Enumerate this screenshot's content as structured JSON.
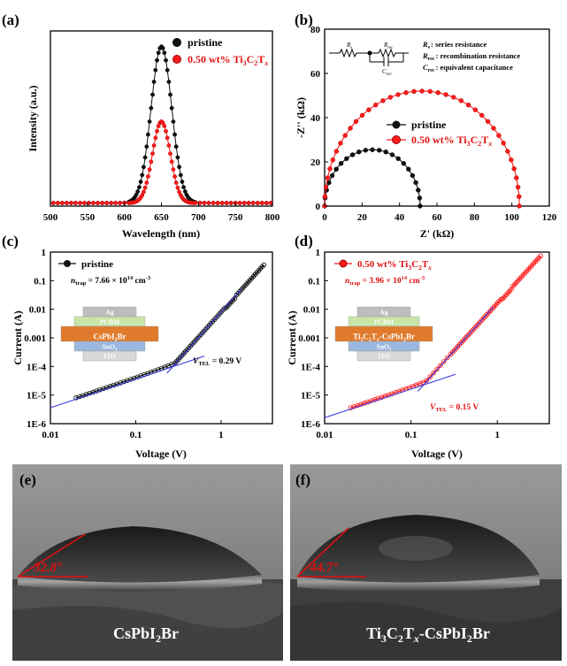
{
  "colors": {
    "black_series": "#111111",
    "red_series": "#ff1a1a",
    "fit_line": "#3a3adf",
    "angle": "#e01010"
  },
  "panels": [
    {
      "id": "a",
      "label": "(a)"
    },
    {
      "id": "b",
      "label": "(b)"
    },
    {
      "id": "c",
      "label": "(c)"
    },
    {
      "id": "d",
      "label": "(d)"
    },
    {
      "id": "e",
      "label": "(e)"
    },
    {
      "id": "f",
      "label": "(f)"
    }
  ],
  "chart_data": [
    {
      "id": "a",
      "type": "line",
      "xlabel": "Wavelength (nm)",
      "ylabel": "Intensity (a.u.)",
      "xlim": [
        500,
        800
      ],
      "ylim": [
        0,
        1.12
      ],
      "y_ticks_shown": false,
      "x_ticks": [
        500,
        550,
        600,
        650,
        700,
        750,
        800
      ],
      "legend": {
        "position": "top-right",
        "entries": [
          "pristine",
          "0.50 wt% Ti3C2Tx"
        ]
      },
      "series": [
        {
          "name": "pristine",
          "color": "black",
          "peak": 650,
          "sigma": 14,
          "amplitude": 1.0,
          "baseline": 0.02
        },
        {
          "name": "0.50 wt% Ti3C2Tx",
          "color": "red",
          "peak": 650,
          "sigma": 12,
          "amplitude": 0.52,
          "baseline": 0.02
        }
      ]
    },
    {
      "id": "b",
      "type": "scatter",
      "xlabel": "Z' (kΩ)",
      "ylabel": "-Z'' (kΩ)",
      "xlim": [
        0,
        120
      ],
      "ylim": [
        0,
        80
      ],
      "x_ticks": [
        0,
        20,
        40,
        60,
        80,
        100,
        120
      ],
      "y_ticks": [
        0,
        20,
        40,
        60,
        80
      ],
      "legend": {
        "position": "center-right",
        "entries": [
          "pristine",
          "0.50 wt% Ti3C2Tx"
        ]
      },
      "circuit_legend": [
        {
          "symbol": "R",
          "sub": "s",
          "text": ": series resistance"
        },
        {
          "symbol": "R",
          "sub": "rec",
          "text": ": recombination resistance"
        },
        {
          "symbol": "C",
          "sub": "rec",
          "text": ": equivalent capacitance"
        }
      ],
      "circuit_labels": {
        "rs": "Rs",
        "rrec": "Rrec",
        "crec": "Crec"
      },
      "series": [
        {
          "name": "pristine",
          "color": "black",
          "semicircle_start": 0,
          "semicircle_end": 51
        },
        {
          "name": "0.50 wt% Ti3C2Tx",
          "color": "red",
          "semicircle_start": 0,
          "semicircle_end": 104
        }
      ]
    },
    {
      "id": "c",
      "type": "scatter",
      "scale": "log-log",
      "xlabel": "Voltage (V)",
      "ylabel": "Current (A)",
      "xlim": [
        0.01,
        4
      ],
      "ylim": [
        1e-06,
        1
      ],
      "x_ticks": [
        {
          "v": 0.01,
          "l": "0.01"
        },
        {
          "v": 0.1,
          "l": "0.1"
        },
        {
          "v": 1,
          "l": "1"
        }
      ],
      "y_ticks": [
        {
          "v": 1e-06,
          "l": "1E-6"
        },
        {
          "v": 1e-05,
          "l": "1E-5"
        },
        {
          "v": 0.0001,
          "l": "1E-4"
        },
        {
          "v": 0.001,
          "l": "0.001"
        },
        {
          "v": 0.01,
          "l": "0.01"
        },
        {
          "v": 0.1,
          "l": "0.1"
        },
        {
          "v": 1,
          "l": "1"
        }
      ],
      "legend_entry": "pristine",
      "trap_prefix": "n",
      "trap_sub": "trap",
      "trap_value": " = 7.66 × 10",
      "trap_exp": "14",
      "trap_unit": " cm",
      "trap_unit_exp": "-3",
      "vtel_prefix": "V",
      "vtel_sub": "TEL",
      "vtel_value": " = 0.29 V",
      "device_layers": [
        "Ag",
        "PCBM",
        "CsPbI2Br",
        "SnO2",
        "ITO"
      ],
      "series": [
        {
          "name": "pristine",
          "color": "black",
          "v_tel": 0.29,
          "i_at_0_02": 8e-06
        }
      ]
    },
    {
      "id": "d",
      "type": "scatter",
      "scale": "log-log",
      "xlabel": "Voltage (V)",
      "ylabel": "Current (A)",
      "xlim": [
        0.01,
        4
      ],
      "ylim": [
        1e-06,
        1
      ],
      "x_ticks": [
        {
          "v": 0.01,
          "l": "0.01"
        },
        {
          "v": 0.1,
          "l": "0.1"
        },
        {
          "v": 1,
          "l": "1"
        }
      ],
      "y_ticks": [
        {
          "v": 1e-06,
          "l": "1E-6"
        },
        {
          "v": 1e-05,
          "l": "1E-5"
        },
        {
          "v": 0.0001,
          "l": "1E-4"
        },
        {
          "v": 0.001,
          "l": "0.001"
        },
        {
          "v": 0.01,
          "l": "0.01"
        },
        {
          "v": 0.1,
          "l": "0.1"
        },
        {
          "v": 1,
          "l": "1"
        }
      ],
      "legend_entry": "0.50 wt% Ti3C2Tx",
      "trap_prefix": "n",
      "trap_sub": "trap",
      "trap_value": " = 3.96 × 10",
      "trap_exp": "14",
      "trap_unit": " cm",
      "trap_unit_exp": "-3",
      "vtel_prefix": "V",
      "vtel_sub": "TEL",
      "vtel_value": " = 0.15 V",
      "device_layers": [
        "Ag",
        "PCBM",
        "Ti3C2Tx-CsPbI2Br",
        "SnO2",
        "ITO"
      ],
      "series": [
        {
          "name": "0.50 wt% Ti3C2Tx",
          "color": "red",
          "v_tel": 0.15,
          "i_at_0_02": 3.6e-06
        }
      ]
    }
  ],
  "photos": [
    {
      "id": "e",
      "angle_text": "32.8°",
      "angle_deg": 32.8,
      "caption": "CsPbI2Br"
    },
    {
      "id": "f",
      "angle_text": "44.7°",
      "angle_deg": 44.7,
      "caption": "Ti3C2Tx-CsPbI2Br"
    }
  ]
}
